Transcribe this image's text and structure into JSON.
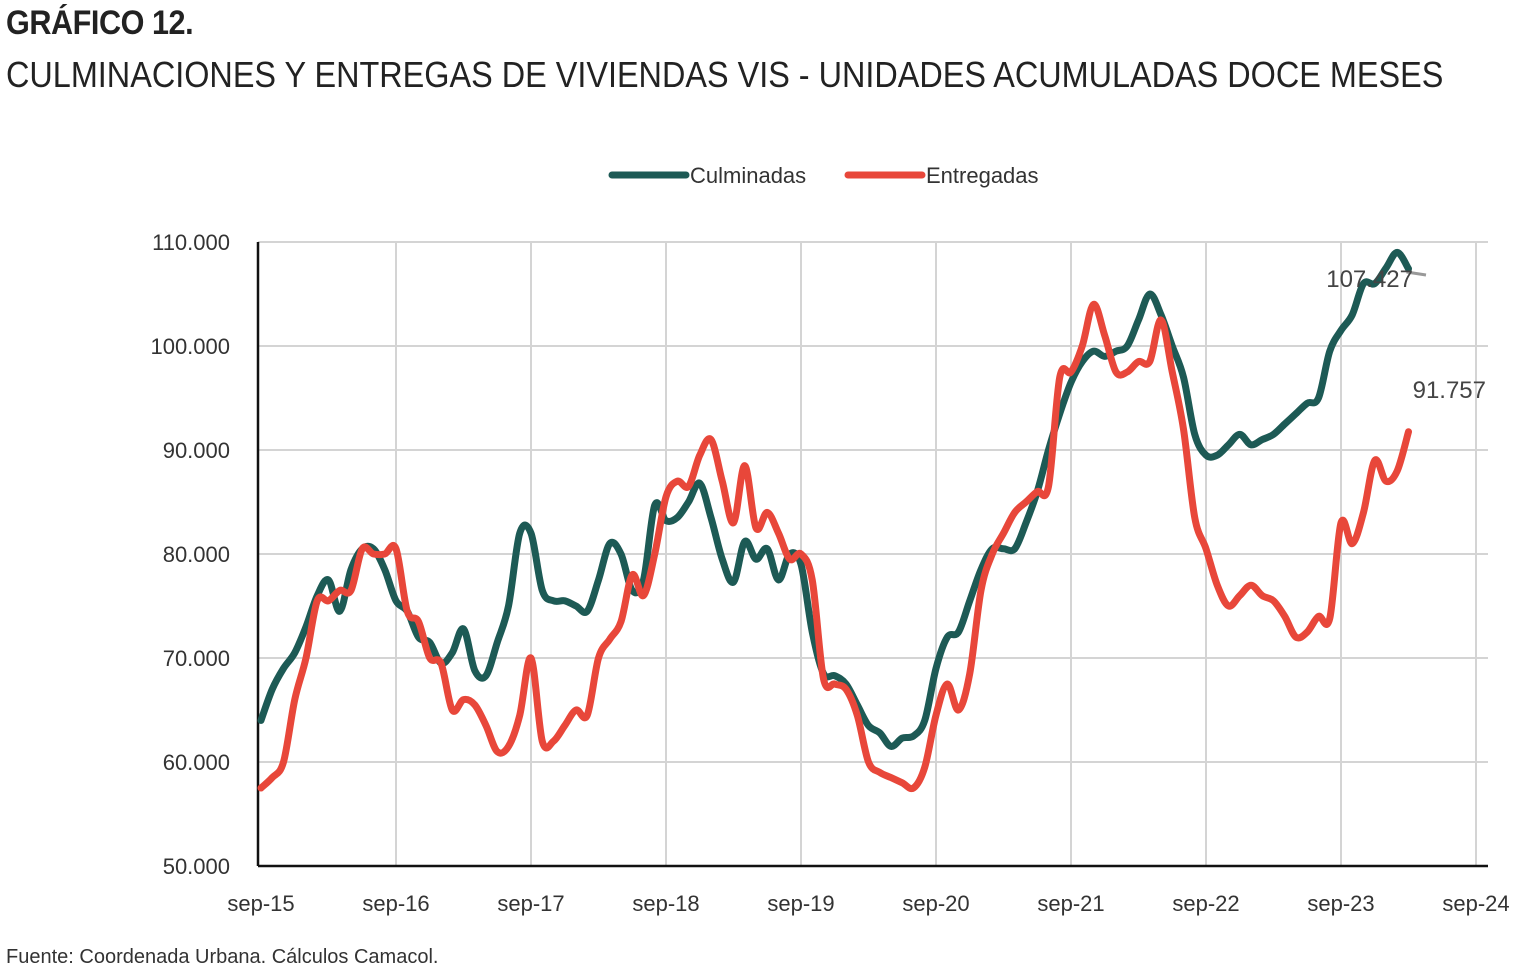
{
  "figure": {
    "number": "GRÁFICO 12.",
    "title": "CULMINACIONES Y ENTREGAS DE VIVIENDAS VIS - UNIDADES ACUMULADAS DOCE MESES",
    "source": "Fuente: Coordenada Urbana. Cálculos Camacol."
  },
  "chart_data": {
    "type": "line",
    "title": "CULMINACIONES Y ENTREGAS DE VIVIENDAS VIS - UNIDADES ACUMULADAS DOCE MESES",
    "xlabel": "",
    "ylabel": "",
    "ylim": [
      50000,
      110000
    ],
    "yticks": [
      50000,
      60000,
      70000,
      80000,
      90000,
      100000,
      110000
    ],
    "ytick_labels": [
      "50.000",
      "60.000",
      "70.000",
      "80.000",
      "90.000",
      "100.000",
      "110.000"
    ],
    "xticks": [
      "sep-15",
      "sep-16",
      "sep-17",
      "sep-18",
      "sep-19",
      "sep-20",
      "sep-21",
      "sep-22",
      "sep-23",
      "sep-24"
    ],
    "x_start": "sep-15",
    "x_end": "sep-24",
    "grid": true,
    "legend_position": "top-center",
    "colors": {
      "culminadas": "#1d5a55",
      "entregadas": "#e8473a"
    },
    "series": [
      {
        "name": "Culminadas",
        "color": "#1d5a55",
        "annotation": "107.427",
        "values": [
          64000,
          67000,
          69000,
          70500,
          73000,
          76000,
          77500,
          74500,
          78500,
          80500,
          80500,
          78500,
          75500,
          74500,
          72000,
          71500,
          69500,
          70500,
          72800,
          68800,
          68300,
          71500,
          75000,
          82000,
          82000,
          76500,
          75500,
          75500,
          75000,
          74500,
          77500,
          81000,
          80000,
          76500,
          77500,
          84700,
          83200,
          83500,
          85000,
          86800,
          83500,
          79500,
          77300,
          81200,
          79500,
          80500,
          77500,
          80000,
          79000,
          72500,
          68500,
          68300,
          67500,
          65500,
          63500,
          62800,
          61500,
          62300,
          62500,
          64000,
          69000,
          72000,
          72500,
          75500,
          78500,
          80500,
          80500,
          80500,
          83000,
          86000,
          90000,
          93500,
          96500,
          98500,
          99500,
          99000,
          99500,
          100000,
          102500,
          105000,
          103000,
          100000,
          97000,
          91500,
          89500,
          89500,
          90500,
          91500,
          90500,
          91000,
          91500,
          92500,
          93500,
          94500,
          95000,
          99500,
          101500,
          103000,
          106000,
          106000,
          107500,
          109000,
          107427
        ]
      },
      {
        "name": "Entregadas",
        "color": "#e8473a",
        "annotation": "91.757",
        "values": [
          57500,
          58500,
          60000,
          66000,
          70000,
          75500,
          75500,
          76500,
          76500,
          80500,
          80000,
          80000,
          80500,
          74500,
          73500,
          70000,
          69500,
          65000,
          66000,
          65500,
          63500,
          61000,
          61500,
          64500,
          70000,
          62000,
          62000,
          63500,
          65000,
          64500,
          70000,
          71800,
          73500,
          78000,
          76000,
          80000,
          85500,
          87000,
          86500,
          89500,
          91000,
          87000,
          83000,
          88500,
          82500,
          84000,
          82000,
          79500,
          80000,
          77500,
          68000,
          67500,
          67000,
          64500,
          60000,
          59000,
          58500,
          58000,
          57500,
          59500,
          64500,
          67500,
          65000,
          68500,
          76500,
          80000,
          82000,
          84000,
          85000,
          86000,
          86500,
          97000,
          97500,
          100000,
          104000,
          101000,
          97500,
          97500,
          98500,
          98500,
          102500,
          97500,
          92000,
          83500,
          80500,
          77000,
          75000,
          76000,
          77000,
          76000,
          75500,
          74000,
          72000,
          72500,
          74000,
          73800,
          83000,
          81000,
          84000,
          89000,
          87000,
          88000,
          91757
        ]
      }
    ]
  }
}
